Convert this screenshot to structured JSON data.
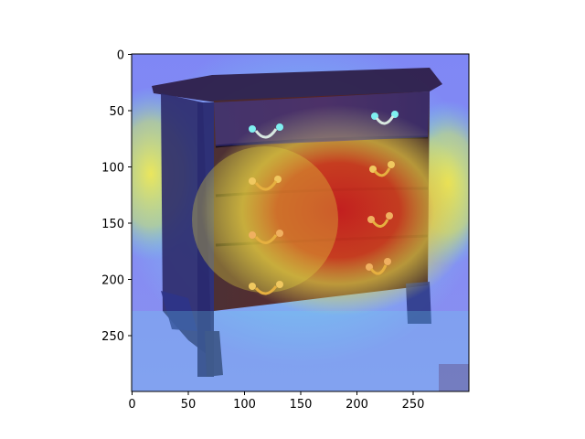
{
  "figure": {
    "image_subject": "serpentine chest of drawers with four drawers and brass bail pulls, overlaid with a jet-colormap heatmap",
    "x_axis": {
      "ticks": [
        "0",
        "50",
        "100",
        "150",
        "200",
        "250"
      ],
      "range": [
        0,
        300
      ]
    },
    "y_axis": {
      "ticks": [
        "0",
        "50",
        "100",
        "150",
        "200",
        "250"
      ],
      "range": [
        0,
        300
      ]
    },
    "colors": {
      "heat_red": "#c81e1e",
      "heat_yellow": "#f0e650",
      "heat_cyan": "#5ae6f0",
      "heat_blue": "#5a64f0",
      "wood_dark": "#3a1a12",
      "brass": "#e6b040"
    }
  }
}
